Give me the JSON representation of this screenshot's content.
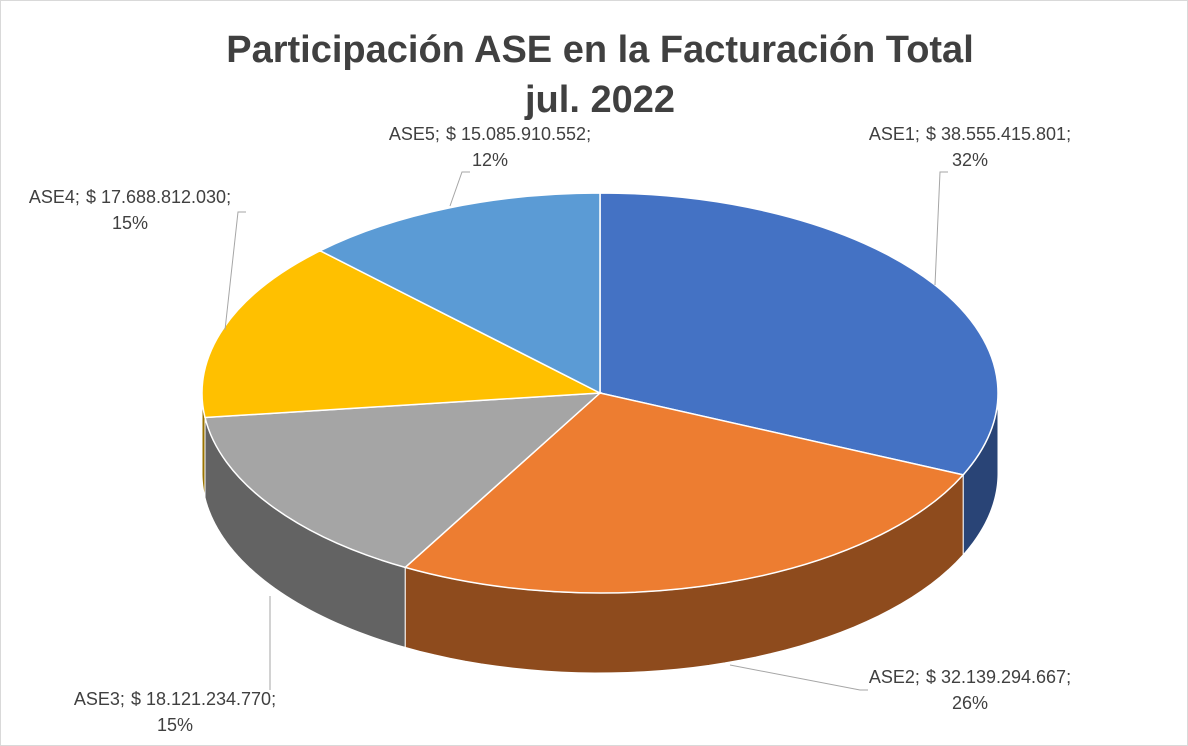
{
  "chart_data": {
    "type": "pie3d",
    "title": "Participación ASE en la Facturación Total",
    "subtitle": "jul. 2022",
    "categories": [
      "ASE1",
      "ASE2",
      "ASE3",
      "ASE4",
      "ASE5"
    ],
    "values": [
      38555415801,
      32139294667,
      18121234770,
      17688812030,
      15085910552
    ],
    "value_labels": [
      "$ 38.555.415.801",
      "$ 32.139.294.667",
      "$ 18.121.234.770",
      "$ 17.688.812.030",
      "$ 15.085.910.552"
    ],
    "percentages": [
      32,
      26,
      15,
      15,
      12
    ],
    "percentage_labels": [
      "32%",
      "26%",
      "15%",
      "15%",
      "12%"
    ],
    "label_separator": ";",
    "colors": [
      "#4472c4",
      "#ed7d31",
      "#a5a5a5",
      "#ffc000",
      "#5b9bd5"
    ]
  }
}
